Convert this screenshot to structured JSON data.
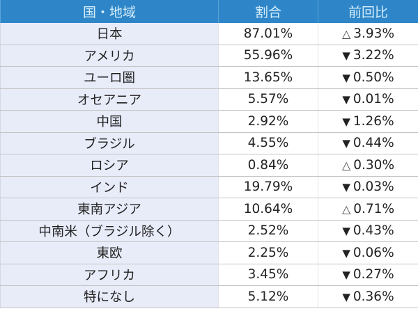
{
  "table": {
    "headers": [
      "国・地域",
      "割合",
      "前回比"
    ],
    "header_bg": "#2e86c8",
    "region_col_bg": "#e8ecf9",
    "rows": [
      {
        "region": "日本",
        "share": "87.01%",
        "dir": "up",
        "symbol": "△",
        "change": "3.93%"
      },
      {
        "region": "アメリカ",
        "share": "55.96%",
        "dir": "down",
        "symbol": "▼",
        "change": "3.22%"
      },
      {
        "region": "ユーロ圏",
        "share": "13.65%",
        "dir": "down",
        "symbol": "▼",
        "change": "0.50%"
      },
      {
        "region": "オセアニア",
        "share": "5.57%",
        "dir": "down",
        "symbol": "▼",
        "change": "0.01%"
      },
      {
        "region": "中国",
        "share": "2.92%",
        "dir": "down",
        "symbol": "▼",
        "change": "1.26%"
      },
      {
        "region": "ブラジル",
        "share": "4.55%",
        "dir": "down",
        "symbol": "▼",
        "change": "0.44%"
      },
      {
        "region": "ロシア",
        "share": "0.84%",
        "dir": "up",
        "symbol": "△",
        "change": "0.30%"
      },
      {
        "region": "インド",
        "share": "19.79%",
        "dir": "down",
        "symbol": "▼",
        "change": "0.03%"
      },
      {
        "region": "東南アジア",
        "share": "10.64%",
        "dir": "up",
        "symbol": "△",
        "change": "0.71%"
      },
      {
        "region": "中南米（ブラジル除く）",
        "share": "2.52%",
        "dir": "down",
        "symbol": "▼",
        "change": "0.43%"
      },
      {
        "region": "東欧",
        "share": "2.25%",
        "dir": "down",
        "symbol": "▼",
        "change": "0.06%"
      },
      {
        "region": "アフリカ",
        "share": "3.45%",
        "dir": "down",
        "symbol": "▼",
        "change": "0.27%"
      },
      {
        "region": "特になし",
        "share": "5.12%",
        "dir": "down",
        "symbol": "▼",
        "change": "0.36%"
      }
    ]
  }
}
